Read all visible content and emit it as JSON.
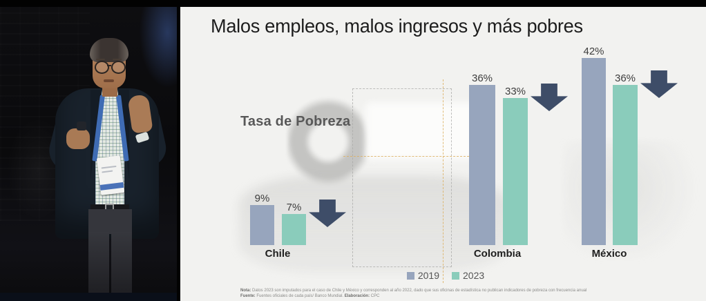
{
  "slide": {
    "title": "Malos empleos, malos ingresos y más pobres",
    "chart_label": "Tasa de Pobreza",
    "footnote": {
      "nota_label": "Nota:",
      "nota_text": " Datos 2023 son imputados para el caso de Chile y México y corresponden al año 2022, dado que sus oficinas de estadística no publican indicadores de pobreza con frecuencia anual",
      "fuente_label": "Fuente:",
      "fuente_text": " Fuentes oficiales de cada país/ Banco Mundial. ",
      "elaboracion_label": "Elaboración:",
      "elaboracion_text": " CPC"
    }
  },
  "chart_data": {
    "type": "bar",
    "title": "Tasa de Pobreza",
    "categories": [
      "Chile",
      "Colombia",
      "México"
    ],
    "series": [
      {
        "name": "2019",
        "color": "#97a5bd",
        "values": [
          9,
          36,
          42
        ]
      },
      {
        "name": "2023",
        "color": "#8accbb",
        "values": [
          7,
          33,
          36
        ]
      }
    ],
    "value_suffix": "%",
    "value_labels": [
      [
        "9%",
        "36%",
        "42%"
      ],
      [
        "7%",
        "33%",
        "36%"
      ]
    ],
    "annotations": "dark downward block arrow beside each country's 2023 bar indicating a decrease",
    "legend_position": "bottom",
    "ylim": [
      0,
      45
    ],
    "grid": false,
    "arrow_color": "#3e4d68"
  }
}
